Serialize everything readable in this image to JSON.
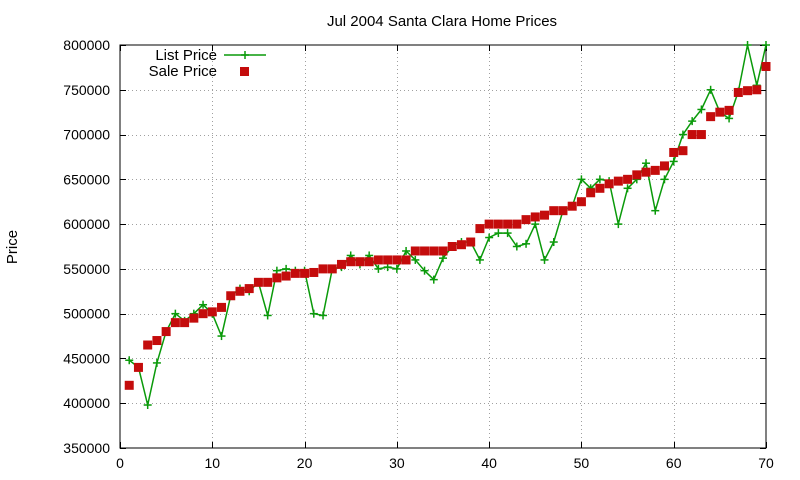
{
  "chart_data": {
    "type": "line",
    "title": "Jul 2004 Santa Clara Home Prices",
    "xlabel": "",
    "ylabel": "Price",
    "xlim": [
      0,
      70
    ],
    "ylim": [
      350000,
      800000
    ],
    "x_ticks": [
      0,
      10,
      20,
      30,
      40,
      50,
      60,
      70
    ],
    "y_ticks": [
      350000,
      400000,
      450000,
      500000,
      550000,
      600000,
      650000,
      700000,
      750000,
      800000
    ],
    "grid": true,
    "legend_position": "top-left",
    "series": [
      {
        "name": "List Price",
        "style": "line-plus",
        "color": "#0a9a0a",
        "x": [
          1,
          2,
          3,
          4,
          5,
          6,
          7,
          8,
          9,
          10,
          11,
          12,
          13,
          14,
          15,
          16,
          17,
          18,
          19,
          20,
          21,
          22,
          23,
          24,
          25,
          26,
          27,
          28,
          29,
          30,
          31,
          32,
          33,
          34,
          35,
          36,
          37,
          38,
          39,
          40,
          41,
          42,
          43,
          44,
          45,
          46,
          47,
          48,
          49,
          50,
          51,
          52,
          53,
          54,
          55,
          56,
          57,
          58,
          59,
          60,
          61,
          62,
          63,
          64,
          65,
          66,
          67,
          68,
          69,
          70
        ],
        "y": [
          448000,
          440000,
          398000,
          445000,
          480000,
          500000,
          492000,
          500000,
          510000,
          500000,
          475000,
          520000,
          528000,
          525000,
          535000,
          498000,
          548000,
          550000,
          548000,
          548000,
          500000,
          498000,
          550000,
          552000,
          565000,
          555000,
          565000,
          550000,
          552000,
          550000,
          570000,
          560000,
          548000,
          538000,
          562000,
          575000,
          580000,
          580000,
          560000,
          585000,
          590000,
          590000,
          575000,
          578000,
          600000,
          560000,
          580000,
          615000,
          620000,
          650000,
          640000,
          650000,
          648000,
          600000,
          640000,
          650000,
          668000,
          615000,
          650000,
          670000,
          700000,
          715000,
          728000,
          750000,
          725000,
          718000,
          748000,
          800000,
          755000,
          800000
        ]
      },
      {
        "name": "Sale Price",
        "style": "square",
        "color": "#c40c0c",
        "x": [
          1,
          2,
          3,
          4,
          5,
          6,
          7,
          8,
          9,
          10,
          11,
          12,
          13,
          14,
          15,
          16,
          17,
          18,
          19,
          20,
          21,
          22,
          23,
          24,
          25,
          26,
          27,
          28,
          29,
          30,
          31,
          32,
          33,
          34,
          35,
          36,
          37,
          38,
          39,
          40,
          41,
          42,
          43,
          44,
          45,
          46,
          47,
          48,
          49,
          50,
          51,
          52,
          53,
          54,
          55,
          56,
          57,
          58,
          59,
          60,
          61,
          62,
          63,
          64,
          65,
          66,
          67,
          68,
          69,
          70
        ],
        "y": [
          420000,
          440000,
          465000,
          470000,
          480000,
          490000,
          490000,
          495000,
          500000,
          502000,
          507000,
          520000,
          525000,
          528000,
          535000,
          535000,
          540000,
          542000,
          545000,
          545000,
          546000,
          550000,
          550000,
          555000,
          558000,
          558000,
          558000,
          560000,
          560000,
          560000,
          560000,
          570000,
          570000,
          570000,
          570000,
          575000,
          577000,
          580000,
          595000,
          600000,
          600000,
          600000,
          600000,
          605000,
          608000,
          610000,
          615000,
          615000,
          620000,
          625000,
          635000,
          640000,
          645000,
          648000,
          650000,
          655000,
          658000,
          660000,
          665000,
          680000,
          682000,
          700000,
          700000,
          720000,
          725000,
          727000,
          747000,
          749000,
          750000,
          776000
        ]
      }
    ]
  }
}
